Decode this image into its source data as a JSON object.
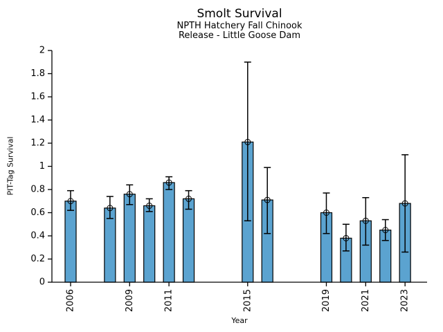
{
  "chart_data": {
    "type": "bar",
    "title": "Smolt Survival",
    "subtitle_lines": [
      "NPTH Hatchery Fall Chinook",
      "Release - Little Goose Dam"
    ],
    "xlabel": "Year",
    "ylabel": "PIT-Tag Survival",
    "x": [
      2006,
      2008,
      2009,
      2010,
      2011,
      2012,
      2015,
      2016,
      2019,
      2020,
      2021,
      2022,
      2023
    ],
    "values": [
      0.7,
      0.64,
      0.76,
      0.66,
      0.86,
      0.72,
      1.21,
      0.71,
      0.6,
      0.38,
      0.53,
      0.45,
      0.68
    ],
    "error_low": [
      0.62,
      0.55,
      0.67,
      0.61,
      0.8,
      0.63,
      0.53,
      0.42,
      0.42,
      0.27,
      0.32,
      0.36,
      0.26
    ],
    "error_high": [
      0.79,
      0.74,
      0.84,
      0.72,
      0.91,
      0.79,
      1.9,
      0.99,
      0.77,
      0.5,
      0.73,
      0.54,
      1.1
    ],
    "marker": "open-circle",
    "error_bars": true,
    "grid": false,
    "legend": false,
    "ylim": [
      0,
      2
    ],
    "xlim": [
      2005.05,
      2024.12
    ],
    "yticks": [
      0,
      0.2,
      0.4,
      0.6,
      0.8,
      1,
      1.2,
      1.4,
      1.6,
      1.8,
      2
    ],
    "ytick_labels": [
      "0",
      "0.2",
      "0.4",
      "0.6",
      "0.8",
      "1",
      "1.2",
      "1.4",
      "1.6",
      "1.8",
      "2"
    ],
    "xticks": [
      2006,
      2009,
      2011,
      2015,
      2019,
      2021,
      2023
    ],
    "xtick_labels": [
      "2006",
      "2009",
      "2011",
      "2015",
      "2019",
      "2021",
      "2023"
    ],
    "xtick_rotation": 90,
    "colors": {
      "bar_fill": "#5BA3D0",
      "bar_edge": "#000000",
      "error_bar": "#000000",
      "marker_edge": "#000000",
      "axis": "#000000",
      "text": "#000000",
      "background": "#FFFFFF"
    }
  }
}
